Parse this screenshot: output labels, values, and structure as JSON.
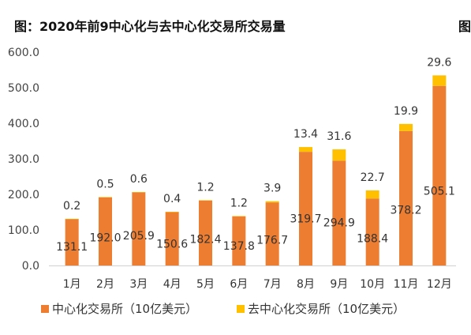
{
  "title": "图：2020年前9中心化与去中心化交易所交易量",
  "title_cut": "图",
  "colors": {
    "centralized": "#ED7D31",
    "decentralized": "#FFC000"
  },
  "chart_data": {
    "type": "bar",
    "stacked": true,
    "title": "图：2020年前9中心化与去中心化交易所交易量",
    "categories": [
      "1月",
      "2月",
      "3月",
      "4月",
      "5月",
      "6月",
      "7月",
      "8月",
      "9月",
      "10月",
      "11月",
      "12月"
    ],
    "series": [
      {
        "name": "中心化交易所（10亿美元）",
        "values": [
          131.1,
          192.0,
          205.9,
          150.6,
          182.4,
          137.8,
          176.7,
          319.7,
          294.9,
          188.4,
          378.2,
          505.1
        ]
      },
      {
        "name": "去中心化交易所（10亿美元）",
        "values": [
          0.2,
          0.5,
          0.6,
          0.4,
          1.2,
          1.2,
          3.9,
          13.4,
          31.6,
          22.7,
          19.9,
          29.6
        ]
      }
    ],
    "series_labels": [
      [
        "131.1",
        "192.0",
        "205.9",
        "150.6",
        "182.4",
        "137.8",
        "176.7",
        "319.7",
        "294.9",
        "188.4",
        "378.2",
        "505.1"
      ],
      [
        "0.2",
        "0.5",
        "0.6",
        "0.4",
        "1.2",
        "1.2",
        "3.9",
        "13.4",
        "31.6",
        "22.7",
        "19.9",
        "29.6"
      ]
    ],
    "ylim": [
      0,
      600
    ],
    "yticks": [
      "0.0",
      "100.0",
      "200.0",
      "300.0",
      "400.0",
      "500.0",
      "600.0"
    ],
    "grid": false,
    "legend": "bottom"
  }
}
